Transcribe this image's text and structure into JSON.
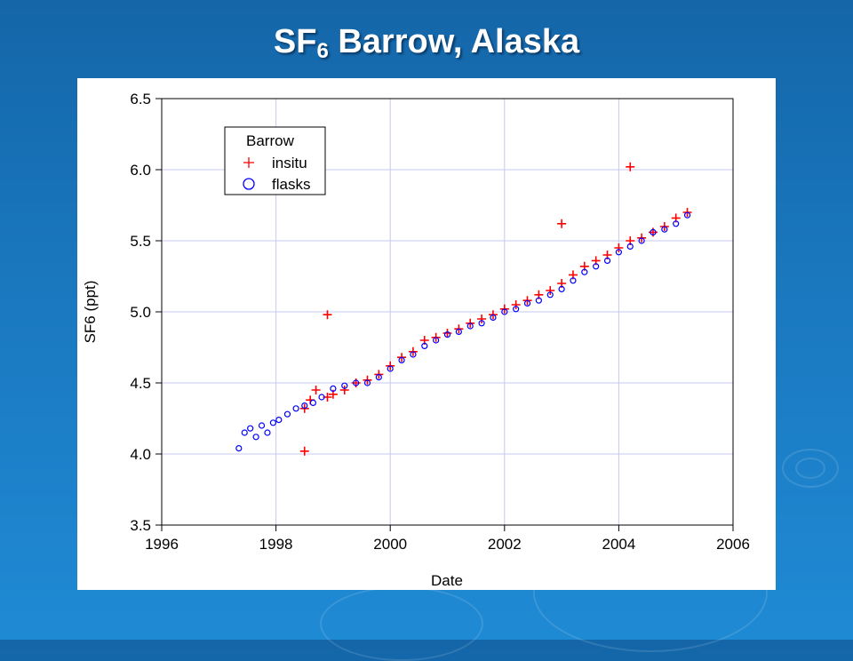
{
  "slide": {
    "title_main": "SF",
    "title_sub": "6",
    "title_rest": " Barrow, Alaska"
  },
  "colors": {
    "insitu": "#ff0000",
    "flasks": "#0000ff",
    "grid": "#c8c8f0"
  },
  "chart_data": {
    "type": "scatter",
    "title": "SF6 Barrow, Alaska",
    "xlabel": "Date",
    "ylabel": "SF6 (ppt)",
    "xlim": [
      1996,
      2006
    ],
    "ylim": [
      3.5,
      6.5
    ],
    "xticks": [
      1996,
      1998,
      2000,
      2002,
      2004,
      2006
    ],
    "yticks": [
      3.5,
      4.0,
      4.5,
      5.0,
      5.5,
      6.0,
      6.5
    ],
    "xtick_labels": [
      "1996",
      "1998",
      "2000",
      "2002",
      "2004",
      "2006"
    ],
    "ytick_labels": [
      "3.5",
      "4.0",
      "4.5",
      "5.0",
      "5.5",
      "6.0",
      "6.5"
    ],
    "grid": true,
    "legend": {
      "title": "Barrow",
      "position": "top-left",
      "entries": [
        "insitu",
        "flasks"
      ]
    },
    "series": [
      {
        "name": "insitu",
        "marker": "plus",
        "x": [
          1998.5,
          1998.6,
          1998.7,
          1998.9,
          1999.0,
          1999.2,
          1999.4,
          1999.6,
          1999.8,
          2000.0,
          2000.2,
          2000.4,
          2000.6,
          2000.8,
          2001.0,
          2001.2,
          2001.4,
          2001.6,
          2001.8,
          2002.0,
          2002.2,
          2002.4,
          2002.6,
          2002.8,
          2003.0,
          2003.2,
          2003.4,
          2003.6,
          2003.8,
          2004.0,
          2004.2,
          2004.4,
          2004.6,
          2004.8,
          2005.0,
          2005.2,
          2004.2,
          1998.9,
          1998.5,
          2003.0
        ],
        "y": [
          4.32,
          4.38,
          4.45,
          4.4,
          4.42,
          4.45,
          4.5,
          4.52,
          4.56,
          4.62,
          4.68,
          4.72,
          4.8,
          4.82,
          4.85,
          4.88,
          4.92,
          4.95,
          4.98,
          5.02,
          5.05,
          5.08,
          5.12,
          5.15,
          5.2,
          5.26,
          5.32,
          5.36,
          5.4,
          5.45,
          5.5,
          5.52,
          5.56,
          5.6,
          5.66,
          5.7,
          6.02,
          4.98,
          4.02,
          5.62
        ]
      },
      {
        "name": "flasks",
        "marker": "circle",
        "x": [
          1997.35,
          1997.45,
          1997.55,
          1997.65,
          1997.75,
          1997.85,
          1997.95,
          1998.05,
          1998.2,
          1998.35,
          1998.5,
          1998.65,
          1998.8,
          1999.0,
          1999.2,
          1999.4,
          1999.6,
          1999.8,
          2000.0,
          2000.2,
          2000.4,
          2000.6,
          2000.8,
          2001.0,
          2001.2,
          2001.4,
          2001.6,
          2001.8,
          2002.0,
          2002.2,
          2002.4,
          2002.6,
          2002.8,
          2003.0,
          2003.2,
          2003.4,
          2003.6,
          2003.8,
          2004.0,
          2004.2,
          2004.4,
          2004.6,
          2004.8,
          2005.0,
          2005.2
        ],
        "y": [
          4.04,
          4.15,
          4.18,
          4.12,
          4.2,
          4.15,
          4.22,
          4.24,
          4.28,
          4.32,
          4.34,
          4.36,
          4.4,
          4.46,
          4.48,
          4.5,
          4.5,
          4.54,
          4.6,
          4.66,
          4.7,
          4.76,
          4.8,
          4.84,
          4.86,
          4.9,
          4.92,
          4.96,
          5.0,
          5.02,
          5.06,
          5.08,
          5.12,
          5.16,
          5.22,
          5.28,
          5.32,
          5.36,
          5.42,
          5.46,
          5.5,
          5.56,
          5.58,
          5.62,
          5.68
        ]
      }
    ]
  }
}
